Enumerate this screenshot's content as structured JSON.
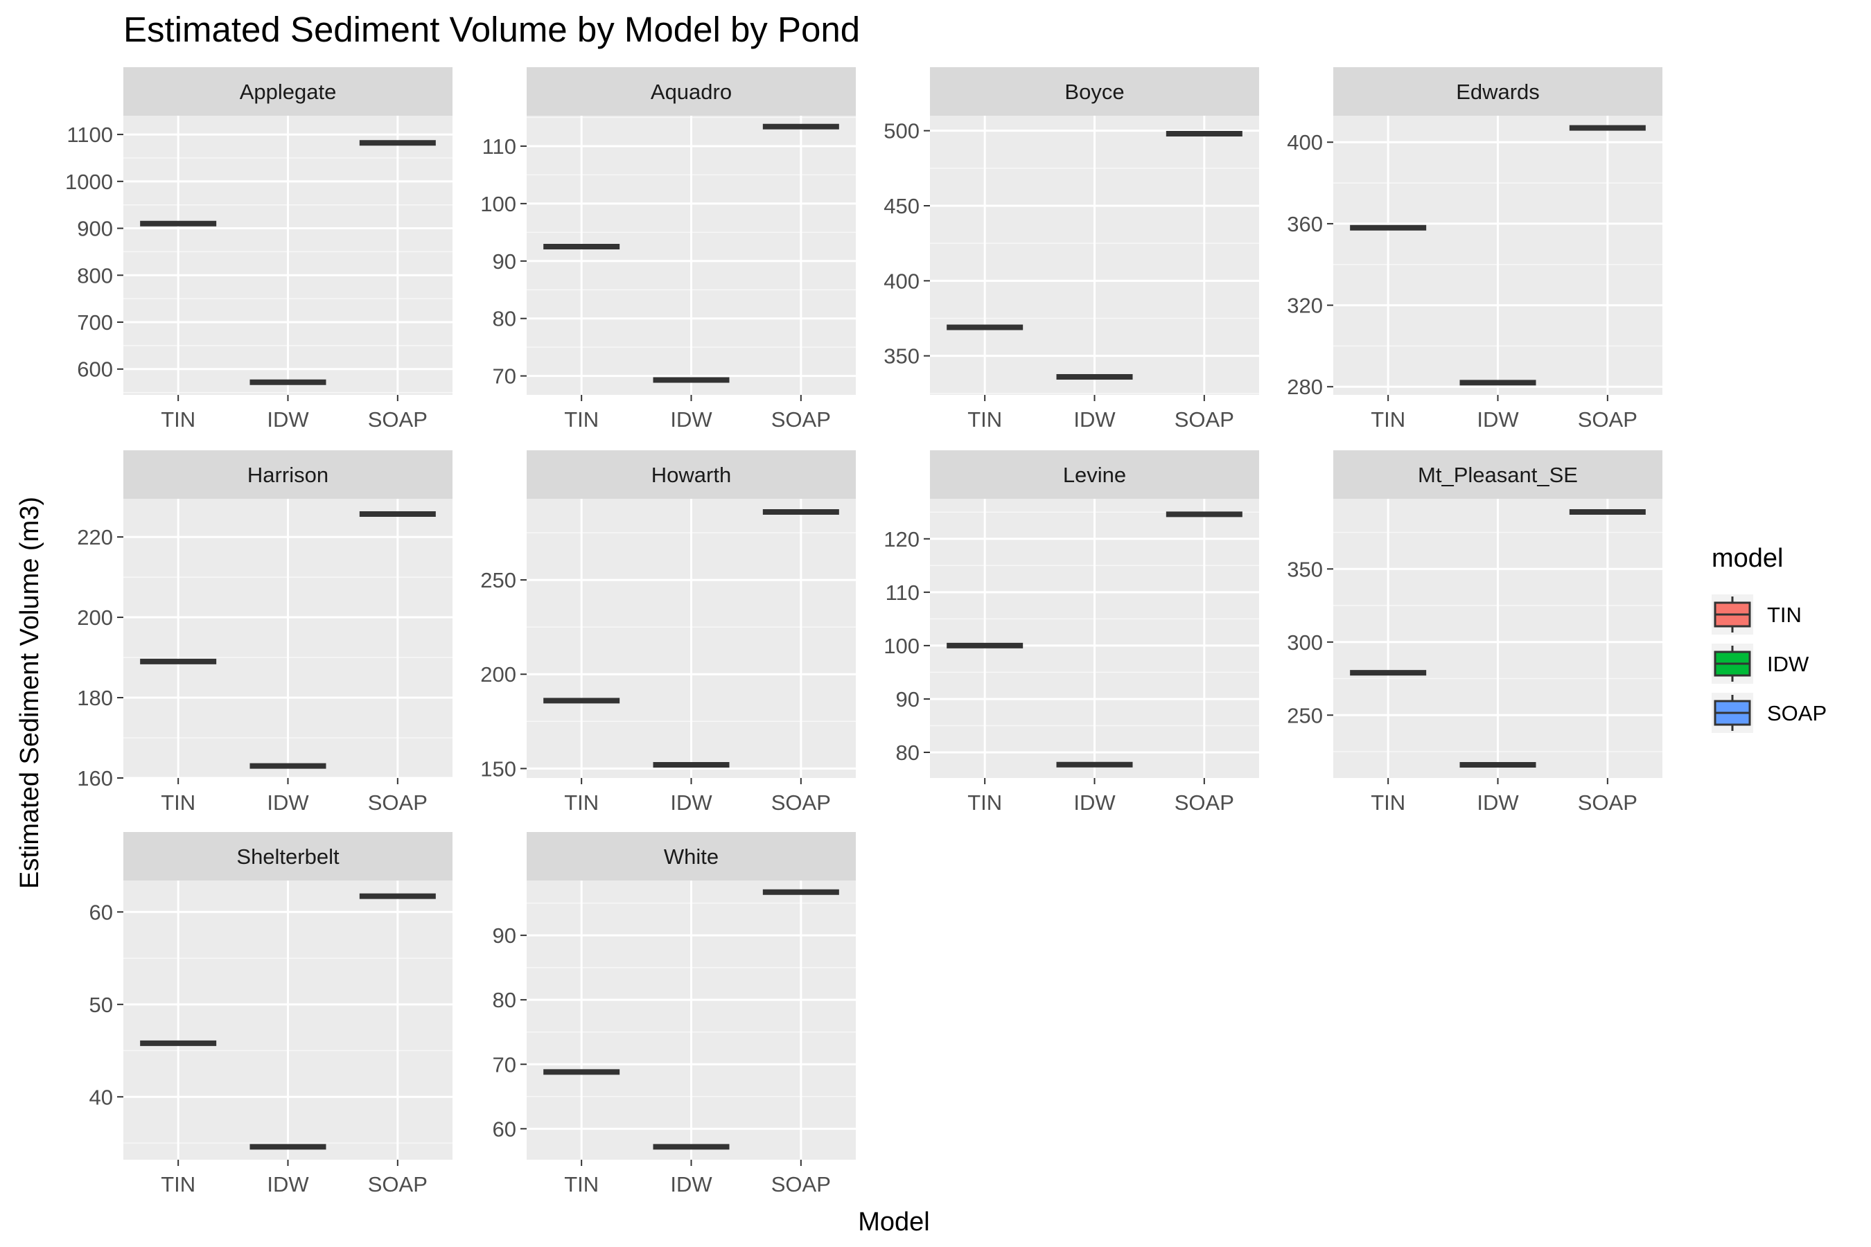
{
  "chart_data": {
    "type": "boxplot-facets",
    "title": "Estimated Sediment Volume by Model by Pond",
    "xlabel": "Model",
    "ylabel": "Estimated Sediment Volume (m3)",
    "categories": [
      "TIN",
      "IDW",
      "SOAP"
    ],
    "grid": true,
    "legend": {
      "title": "model",
      "position": "right",
      "entries": [
        {
          "label": "TIN",
          "color": "#F8766D"
        },
        {
          "label": "IDW",
          "color": "#00BA38"
        },
        {
          "label": "SOAP",
          "color": "#619CFF"
        }
      ]
    },
    "colors": {
      "panel_bg": "#EBEBEB",
      "strip_bg": "#D9D9D9",
      "grid": "#FFFFFF",
      "median": "#333333",
      "tick_text": "#4D4D4D"
    },
    "facets": [
      {
        "name": "Applegate",
        "ylim": [
          545,
          1140
        ],
        "yticks": [
          600,
          700,
          800,
          900,
          1000,
          1100
        ],
        "values": [
          910,
          572,
          1082
        ]
      },
      {
        "name": "Aquadro",
        "ylim": [
          66.7,
          115.3
        ],
        "yticks": [
          70,
          80,
          90,
          100,
          110
        ],
        "values": [
          92.5,
          69.3,
          113.4
        ]
      },
      {
        "name": "Boyce",
        "ylim": [
          324,
          510
        ],
        "yticks": [
          350,
          400,
          450,
          500
        ],
        "values": [
          369,
          336,
          498
        ]
      },
      {
        "name": "Edwards",
        "ylim": [
          276,
          413
        ],
        "yticks": [
          280,
          320,
          360,
          400
        ],
        "values": [
          358,
          282,
          407
        ]
      },
      {
        "name": "Harrison",
        "ylim": [
          160,
          229.5
        ],
        "yticks": [
          160,
          180,
          200,
          220
        ],
        "values": [
          189,
          163,
          225.7
        ]
      },
      {
        "name": "Howarth",
        "ylim": [
          145,
          293
        ],
        "yticks": [
          150,
          200,
          250
        ],
        "values": [
          186,
          152,
          286
        ]
      },
      {
        "name": "Levine",
        "ylim": [
          75.2,
          127.5
        ],
        "yticks": [
          80,
          90,
          100,
          110,
          120
        ],
        "values": [
          100,
          77.7,
          124.6
        ]
      },
      {
        "name": "Mt_Pleasant_SE",
        "ylim": [
          207,
          398
        ],
        "yticks": [
          250,
          300,
          350
        ],
        "values": [
          279,
          216,
          389
        ]
      },
      {
        "name": "Shelterbelt",
        "ylim": [
          33.2,
          63.4
        ],
        "yticks": [
          40,
          50,
          60
        ],
        "values": [
          45.8,
          34.6,
          61.7
        ]
      },
      {
        "name": "White",
        "ylim": [
          55.2,
          98.5
        ],
        "yticks": [
          60,
          70,
          80,
          90
        ],
        "values": [
          68.8,
          57.2,
          96.7
        ]
      }
    ]
  }
}
